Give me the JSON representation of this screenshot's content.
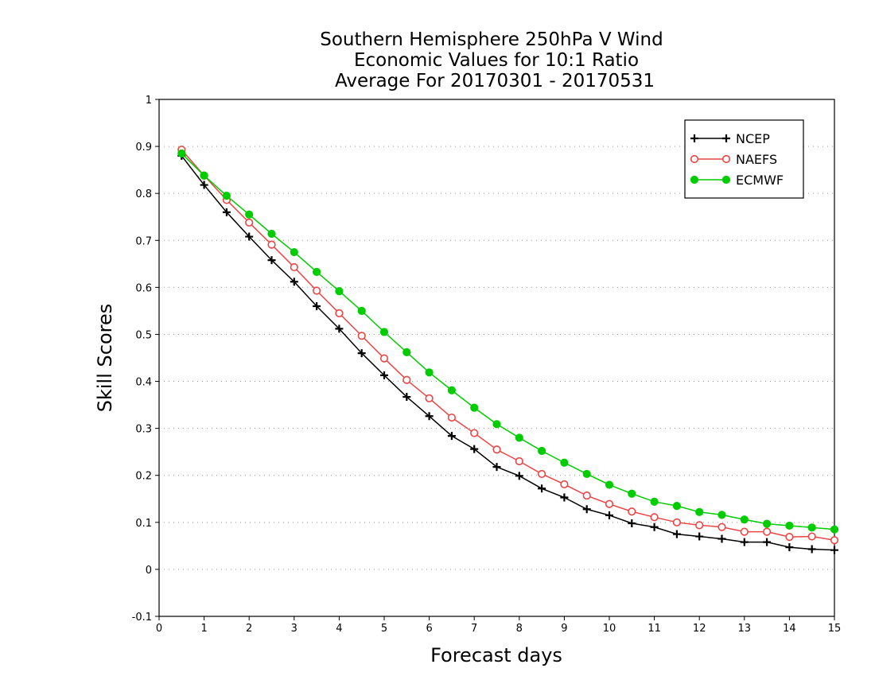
{
  "chart_data": {
    "type": "line",
    "title_lines": [
      "Southern Hemisphere 250hPa V Wind",
      "Economic Values for 10:1 Ratio",
      "Average For 20170301 - 20170531"
    ],
    "xlabel": "Forecast days",
    "ylabel": "Skill Scores",
    "xlim": [
      0,
      15
    ],
    "ylim": [
      -0.1,
      1
    ],
    "xticks": [
      "0",
      "1",
      "2",
      "3",
      "4",
      "5",
      "6",
      "7",
      "8",
      "9",
      "10",
      "11",
      "12",
      "13",
      "14",
      "15"
    ],
    "yticks": [
      "-0.1",
      "0",
      "0.1",
      "0.2",
      "0.3",
      "0.4",
      "0.5",
      "0.6",
      "0.7",
      "0.8",
      "0.9",
      "1"
    ],
    "grid": "horizontal dotted",
    "legend_position": "top-right",
    "x": [
      0.5,
      1,
      1.5,
      2,
      2.5,
      3,
      3.5,
      4,
      4.5,
      5,
      5.5,
      6,
      6.5,
      7,
      7.5,
      8,
      8.5,
      9,
      9.5,
      10,
      10.5,
      11,
      11.5,
      12,
      12.5,
      13,
      13.5,
      14,
      14.5,
      15
    ],
    "series": [
      {
        "name": "NCEP",
        "color": "#000000",
        "marker": "plus",
        "values": [
          0.88,
          0.818,
          0.76,
          0.708,
          0.658,
          0.612,
          0.56,
          0.512,
          0.46,
          0.413,
          0.367,
          0.326,
          0.284,
          0.256,
          0.218,
          0.199,
          0.172,
          0.153,
          0.128,
          0.115,
          0.098,
          0.09,
          0.075,
          0.07,
          0.065,
          0.058,
          0.058,
          0.047,
          0.043,
          0.041
        ]
      },
      {
        "name": "NAEFS",
        "color": "#ee4444",
        "marker": "open-circle",
        "values": [
          0.893,
          0.838,
          0.786,
          0.738,
          0.691,
          0.643,
          0.593,
          0.545,
          0.497,
          0.449,
          0.403,
          0.364,
          0.323,
          0.29,
          0.255,
          0.23,
          0.203,
          0.181,
          0.157,
          0.139,
          0.123,
          0.111,
          0.1,
          0.094,
          0.09,
          0.08,
          0.08,
          0.069,
          0.07,
          0.062
        ]
      },
      {
        "name": "ECMWF",
        "color": "#00cc00",
        "marker": "filled-circle",
        "values": [
          0.885,
          0.838,
          0.795,
          0.755,
          0.714,
          0.675,
          0.633,
          0.592,
          0.55,
          0.505,
          0.462,
          0.419,
          0.381,
          0.344,
          0.309,
          0.28,
          0.252,
          0.227,
          0.203,
          0.18,
          0.161,
          0.144,
          0.135,
          0.122,
          0.116,
          0.106,
          0.097,
          0.093,
          0.089,
          0.085
        ]
      }
    ]
  }
}
